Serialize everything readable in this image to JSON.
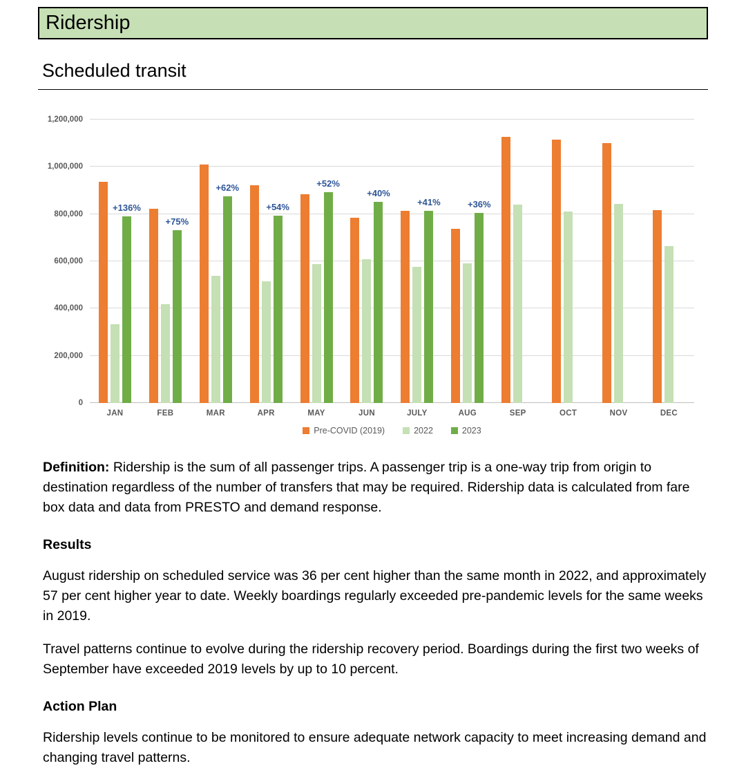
{
  "page": {
    "banner_title": "Ridership",
    "section_title": "Scheduled transit"
  },
  "chart_data": {
    "type": "bar",
    "title": "",
    "xlabel": "",
    "ylabel": "",
    "categories": [
      "JAN",
      "FEB",
      "MAR",
      "APR",
      "MAY",
      "JUN",
      "JULY",
      "AUG",
      "SEP",
      "OCT",
      "NOV",
      "DEC"
    ],
    "series": [
      {
        "name": "Pre-COVID (2019)",
        "color": "#ED7D31",
        "values": [
          938000,
          822000,
          1010000,
          922000,
          884000,
          785000,
          815000,
          737000,
          1128000,
          1116000,
          1100000,
          818000
        ]
      },
      {
        "name": "2022",
        "color": "#C5E0B4",
        "values": [
          335000,
          418000,
          540000,
          515000,
          587000,
          608000,
          578000,
          592000,
          840000,
          812000,
          842000,
          665000
        ]
      },
      {
        "name": "2023",
        "color": "#70AD47",
        "values": [
          791000,
          731000,
          875000,
          793000,
          892000,
          851000,
          815000,
          805000,
          null,
          null,
          null,
          null
        ]
      }
    ],
    "annotations": [
      "+136%",
      "+75%",
      "+62%",
      "+54%",
      "+52%",
      "+40%",
      "+41%",
      "+36%",
      null,
      null,
      null,
      null
    ],
    "annotation_color": "#2E5597",
    "ylim": [
      0,
      1200000
    ],
    "ytick_interval": 200000,
    "ytick_labels": [
      "0",
      "200,000",
      "400,000",
      "600,000",
      "800,000",
      "1,000,000",
      "1,200,000"
    ],
    "grid": true,
    "legend_position": "bottom"
  },
  "body": {
    "definition_label": "Definition:",
    "definition_text": " Ridership is the sum of all passenger trips. A passenger trip is a one-way trip from origin to destination regardless of the number of transfers that may be required. Ridership data is calculated from fare box data and data from PRESTO and demand response.",
    "results_heading": "Results",
    "results_para1": "August ridership on scheduled service was 36 per cent higher than the same month in 2022, and approximately 57 per cent higher year to date. Weekly boardings regularly exceeded pre-pandemic levels for the same weeks in 2019.",
    "results_para2": "Travel patterns continue to evolve during the ridership recovery period. Boardings during the first two weeks of September have exceeded 2019 levels by up to 10 percent.",
    "action_heading": "Action Plan",
    "action_para": "Ridership levels continue to be monitored to ensure adequate network capacity to meet increasing demand and changing travel patterns."
  },
  "colors": {
    "banner_background": "#C6DFB4",
    "gridline": "#D9D9D9",
    "axis_text": "#595959"
  }
}
